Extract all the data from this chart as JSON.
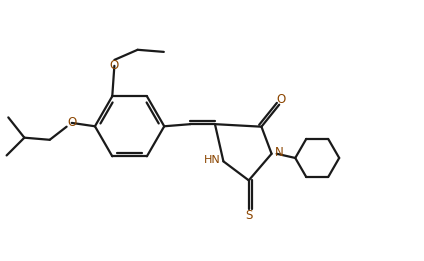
{
  "background_color": "#ffffff",
  "line_color": "#1a1a1a",
  "heteroatom_color": "#8B4500",
  "line_width": 1.6,
  "figsize": [
    4.24,
    2.61
  ],
  "dpi": 100,
  "xlim": [
    0,
    10
  ],
  "ylim": [
    0,
    6.1
  ]
}
